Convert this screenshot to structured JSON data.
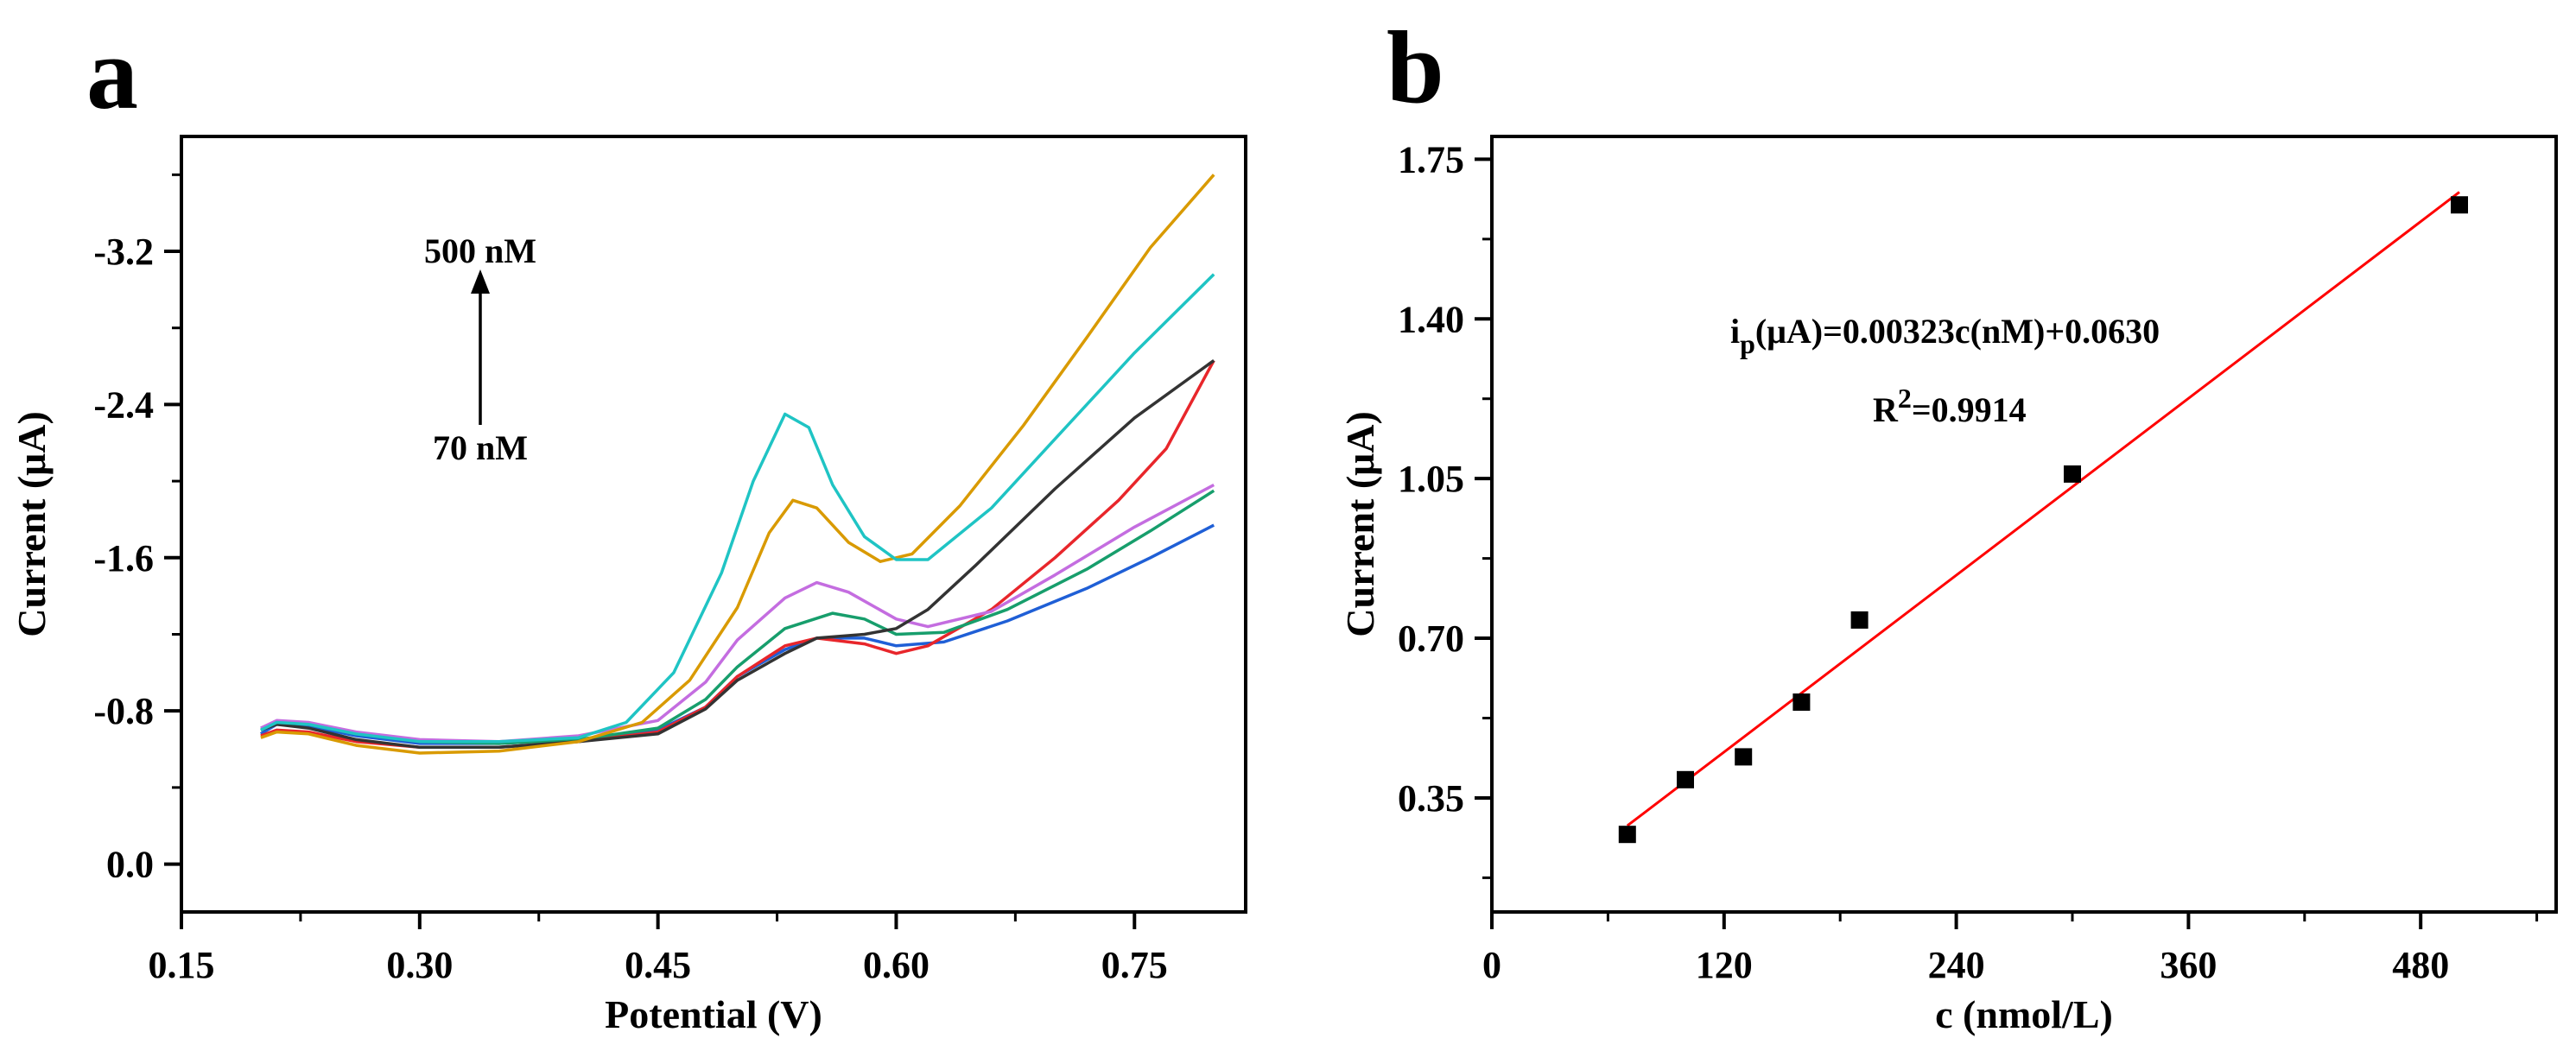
{
  "chart_data": [
    {
      "panel": "a",
      "type": "line",
      "xlabel": "Potential (V)",
      "ylabel": "Current (μA)",
      "xlim": [
        0.15,
        0.82
      ],
      "ylim": [
        0.25,
        -3.8
      ],
      "y_axis_inverted": true,
      "x_ticks": [
        0.15,
        0.3,
        0.45,
        0.6,
        0.75
      ],
      "x_tick_labels": [
        "0.15",
        "0.30",
        "0.45",
        "0.60",
        "0.75"
      ],
      "y_ticks": [
        0.0,
        -0.8,
        -1.6,
        -2.4,
        -3.2
      ],
      "y_tick_labels": [
        "0.0",
        "-0.8",
        "-1.6",
        "-2.4",
        "-3.2"
      ],
      "annotation_top": "500 nM",
      "annotation_bottom": "70 nM",
      "series": [
        {
          "name": "blue",
          "color": "#1f5fd6",
          "points": [
            [
              0.2,
              -0.68
            ],
            [
              0.21,
              -0.73
            ],
            [
              0.23,
              -0.72
            ],
            [
              0.26,
              -0.67
            ],
            [
              0.3,
              -0.63
            ],
            [
              0.35,
              -0.63
            ],
            [
              0.4,
              -0.65
            ],
            [
              0.45,
              -0.7
            ],
            [
              0.48,
              -0.82
            ],
            [
              0.5,
              -0.98
            ],
            [
              0.53,
              -1.12
            ],
            [
              0.55,
              -1.18
            ],
            [
              0.58,
              -1.18
            ],
            [
              0.6,
              -1.14
            ],
            [
              0.63,
              -1.16
            ],
            [
              0.67,
              -1.27
            ],
            [
              0.72,
              -1.44
            ],
            [
              0.76,
              -1.6
            ],
            [
              0.8,
              -1.77
            ]
          ]
        },
        {
          "name": "red",
          "color": "#e8262b",
          "points": [
            [
              0.2,
              -0.67
            ],
            [
              0.21,
              -0.7
            ],
            [
              0.23,
              -0.69
            ],
            [
              0.26,
              -0.64
            ],
            [
              0.3,
              -0.61
            ],
            [
              0.35,
              -0.61
            ],
            [
              0.4,
              -0.64
            ],
            [
              0.45,
              -0.69
            ],
            [
              0.48,
              -0.82
            ],
            [
              0.5,
              -0.98
            ],
            [
              0.53,
              -1.14
            ],
            [
              0.55,
              -1.18
            ],
            [
              0.58,
              -1.15
            ],
            [
              0.6,
              -1.1
            ],
            [
              0.62,
              -1.14
            ],
            [
              0.66,
              -1.33
            ],
            [
              0.7,
              -1.6
            ],
            [
              0.74,
              -1.9
            ],
            [
              0.77,
              -2.17
            ],
            [
              0.8,
              -2.63
            ]
          ]
        },
        {
          "name": "green",
          "color": "#179e6c",
          "points": [
            [
              0.2,
              -0.7
            ],
            [
              0.21,
              -0.74
            ],
            [
              0.23,
              -0.73
            ],
            [
              0.26,
              -0.68
            ],
            [
              0.3,
              -0.64
            ],
            [
              0.35,
              -0.63
            ],
            [
              0.4,
              -0.65
            ],
            [
              0.45,
              -0.71
            ],
            [
              0.48,
              -0.86
            ],
            [
              0.5,
              -1.03
            ],
            [
              0.53,
              -1.23
            ],
            [
              0.56,
              -1.31
            ],
            [
              0.58,
              -1.28
            ],
            [
              0.6,
              -1.2
            ],
            [
              0.63,
              -1.21
            ],
            [
              0.67,
              -1.33
            ],
            [
              0.72,
              -1.54
            ],
            [
              0.76,
              -1.74
            ],
            [
              0.8,
              -1.95
            ]
          ]
        },
        {
          "name": "violet",
          "color": "#c46de0",
          "points": [
            [
              0.2,
              -0.71
            ],
            [
              0.21,
              -0.75
            ],
            [
              0.23,
              -0.74
            ],
            [
              0.26,
              -0.69
            ],
            [
              0.3,
              -0.65
            ],
            [
              0.35,
              -0.64
            ],
            [
              0.4,
              -0.67
            ],
            [
              0.45,
              -0.75
            ],
            [
              0.48,
              -0.95
            ],
            [
              0.5,
              -1.17
            ],
            [
              0.53,
              -1.39
            ],
            [
              0.55,
              -1.47
            ],
            [
              0.57,
              -1.42
            ],
            [
              0.6,
              -1.28
            ],
            [
              0.62,
              -1.24
            ],
            [
              0.66,
              -1.32
            ],
            [
              0.7,
              -1.51
            ],
            [
              0.75,
              -1.76
            ],
            [
              0.8,
              -1.98
            ]
          ]
        },
        {
          "name": "dark gray",
          "color": "#333333",
          "points": [
            [
              0.2,
              -0.7
            ],
            [
              0.21,
              -0.73
            ],
            [
              0.23,
              -0.71
            ],
            [
              0.26,
              -0.65
            ],
            [
              0.3,
              -0.61
            ],
            [
              0.35,
              -0.61
            ],
            [
              0.4,
              -0.64
            ],
            [
              0.45,
              -0.68
            ],
            [
              0.48,
              -0.81
            ],
            [
              0.5,
              -0.96
            ],
            [
              0.53,
              -1.1
            ],
            [
              0.55,
              -1.18
            ],
            [
              0.58,
              -1.2
            ],
            [
              0.6,
              -1.23
            ],
            [
              0.62,
              -1.33
            ],
            [
              0.65,
              -1.56
            ],
            [
              0.7,
              -1.96
            ],
            [
              0.75,
              -2.33
            ],
            [
              0.8,
              -2.63
            ]
          ]
        },
        {
          "name": "orange",
          "color": "#d99a00",
          "points": [
            [
              0.2,
              -0.66
            ],
            [
              0.21,
              -0.69
            ],
            [
              0.23,
              -0.68
            ],
            [
              0.26,
              -0.62
            ],
            [
              0.3,
              -0.58
            ],
            [
              0.35,
              -0.59
            ],
            [
              0.4,
              -0.64
            ],
            [
              0.44,
              -0.74
            ],
            [
              0.47,
              -0.96
            ],
            [
              0.5,
              -1.34
            ],
            [
              0.52,
              -1.73
            ],
            [
              0.535,
              -1.9
            ],
            [
              0.55,
              -1.86
            ],
            [
              0.57,
              -1.68
            ],
            [
              0.59,
              -1.58
            ],
            [
              0.61,
              -1.62
            ],
            [
              0.64,
              -1.87
            ],
            [
              0.68,
              -2.29
            ],
            [
              0.72,
              -2.75
            ],
            [
              0.76,
              -3.22
            ],
            [
              0.8,
              -3.6
            ]
          ]
        },
        {
          "name": "cyan",
          "color": "#1fc4c4",
          "points": [
            [
              0.2,
              -0.7
            ],
            [
              0.21,
              -0.74
            ],
            [
              0.23,
              -0.73
            ],
            [
              0.26,
              -0.68
            ],
            [
              0.3,
              -0.64
            ],
            [
              0.35,
              -0.64
            ],
            [
              0.4,
              -0.66
            ],
            [
              0.43,
              -0.74
            ],
            [
              0.46,
              -1.0
            ],
            [
              0.49,
              -1.52
            ],
            [
              0.51,
              -2.0
            ],
            [
              0.53,
              -2.35
            ],
            [
              0.545,
              -2.28
            ],
            [
              0.56,
              -1.98
            ],
            [
              0.58,
              -1.71
            ],
            [
              0.6,
              -1.59
            ],
            [
              0.62,
              -1.59
            ],
            [
              0.66,
              -1.86
            ],
            [
              0.7,
              -2.22
            ],
            [
              0.75,
              -2.67
            ],
            [
              0.8,
              -3.08
            ]
          ]
        }
      ]
    },
    {
      "panel": "b",
      "type": "scatter",
      "xlabel": "c (nmol/L)",
      "ylabel": "Current (μA)",
      "xlim": [
        0,
        550
      ],
      "ylim": [
        0.1,
        1.8
      ],
      "x_ticks": [
        0,
        120,
        240,
        360,
        480
      ],
      "x_tick_labels": [
        "0",
        "120",
        "240",
        "360",
        "480"
      ],
      "y_ticks": [
        0.35,
        0.7,
        1.05,
        1.4,
        1.75
      ],
      "y_tick_labels": [
        "0.35",
        "0.70",
        "1.05",
        "1.40",
        "1.75"
      ],
      "x": [
        70,
        100,
        130,
        160,
        190,
        300,
        500
      ],
      "y": [
        0.27,
        0.39,
        0.44,
        0.56,
        0.74,
        1.06,
        1.65
      ],
      "fit": {
        "slope": 0.00323,
        "intercept": 0.063,
        "x_range": [
          70,
          500
        ]
      },
      "marker_color": "#000000",
      "fit_color": "#ff0000",
      "equation_i": "i",
      "equation_sub": "p",
      "equation_rest": "(μA)=0.00323c(nM)+0.0630",
      "r2_prefix": "R",
      "r2_sup": "2",
      "r2_rest": "=0.9914"
    }
  ],
  "panel_labels": [
    "a",
    "b"
  ]
}
